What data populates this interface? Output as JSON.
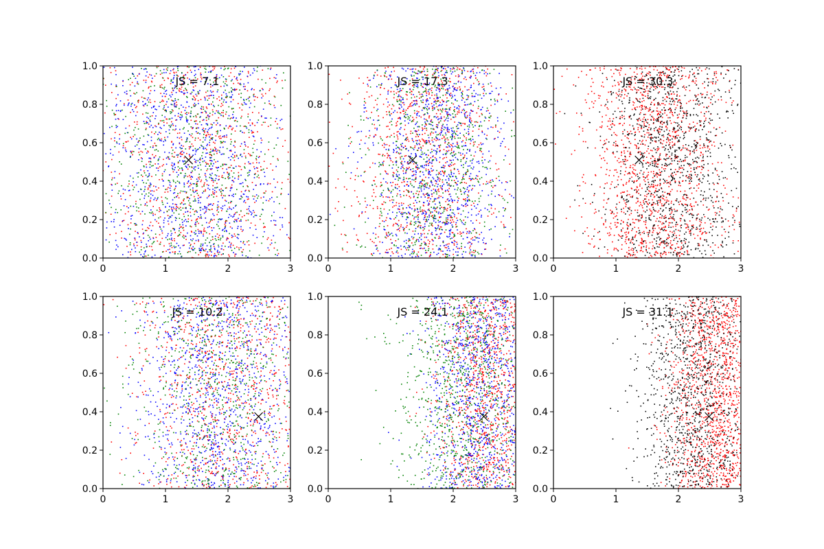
{
  "chart_data": [
    {
      "type": "scatter",
      "annotation": "JS = 7.1",
      "xlim": [
        0,
        3
      ],
      "ylim": [
        0,
        1
      ],
      "xticks": [
        "0",
        "1",
        "2",
        "3"
      ],
      "yticks": [
        "0.0",
        "0.2",
        "0.4",
        "0.6",
        "0.8",
        "1.0"
      ],
      "marker": {
        "x": 1.37,
        "y": 0.51
      },
      "series": [
        {
          "color": "#ff0000",
          "count": 900,
          "center": 1.5,
          "spread": 0.8
        },
        {
          "color": "#0000ff",
          "count": 1000,
          "center": 1.4,
          "spread": 0.75
        },
        {
          "color": "#008000",
          "count": 700,
          "center": 1.5,
          "spread": 0.75
        }
      ]
    },
    {
      "type": "scatter",
      "annotation": "JS = 17.3",
      "xlim": [
        0,
        3
      ],
      "ylim": [
        0,
        1
      ],
      "xticks": [
        "0",
        "1",
        "2",
        "3"
      ],
      "yticks": [
        "0.0",
        "0.2",
        "0.4",
        "0.6",
        "0.8",
        "1.0"
      ],
      "marker": {
        "x": 1.35,
        "y": 0.51
      },
      "series": [
        {
          "color": "#ff0000",
          "count": 1000,
          "center": 1.6,
          "spread": 0.6
        },
        {
          "color": "#0000ff",
          "count": 1000,
          "center": 1.75,
          "spread": 0.55
        },
        {
          "color": "#008000",
          "count": 700,
          "center": 1.7,
          "spread": 0.55
        }
      ]
    },
    {
      "type": "scatter",
      "annotation": "JS = 30.3",
      "xlim": [
        0,
        3
      ],
      "ylim": [
        0,
        1
      ],
      "xticks": [
        "0",
        "1",
        "2",
        "3"
      ],
      "yticks": [
        "0.0",
        "0.2",
        "0.4",
        "0.6",
        "0.8",
        "1.0"
      ],
      "marker": {
        "x": 1.37,
        "y": 0.51
      },
      "series": [
        {
          "color": "#ff0000",
          "count": 1400,
          "center": 1.6,
          "spread": 0.55
        },
        {
          "color": "#000000",
          "count": 1100,
          "center": 1.9,
          "spread": 0.55
        }
      ]
    },
    {
      "type": "scatter",
      "annotation": "JS = 10.2",
      "xlim": [
        0,
        3
      ],
      "ylim": [
        0,
        1
      ],
      "xticks": [
        "0",
        "1",
        "2",
        "3"
      ],
      "yticks": [
        "0.0",
        "0.2",
        "0.4",
        "0.6",
        "0.8",
        "1.0"
      ],
      "marker": {
        "x": 2.49,
        "y": 0.375
      },
      "series": [
        {
          "color": "#ff0000",
          "count": 900,
          "center": 1.9,
          "spread": 0.7
        },
        {
          "color": "#0000ff",
          "count": 1000,
          "center": 1.85,
          "spread": 0.7
        },
        {
          "color": "#008000",
          "count": 700,
          "center": 1.85,
          "spread": 0.7
        }
      ]
    },
    {
      "type": "scatter",
      "annotation": "JS = 24.1",
      "xlim": [
        0,
        3
      ],
      "ylim": [
        0,
        1
      ],
      "xticks": [
        "0",
        "1",
        "2",
        "3"
      ],
      "yticks": [
        "0.0",
        "0.2",
        "0.4",
        "0.6",
        "0.8",
        "1.0"
      ],
      "marker": {
        "x": 2.49,
        "y": 0.375
      },
      "series": [
        {
          "color": "#ff0000",
          "count": 1100,
          "center": 2.6,
          "spread": 0.45
        },
        {
          "color": "#0000ff",
          "count": 1000,
          "center": 2.45,
          "spread": 0.45
        },
        {
          "color": "#008000",
          "count": 900,
          "center": 2.15,
          "spread": 0.55
        }
      ]
    },
    {
      "type": "scatter",
      "annotation": "JS = 31.1",
      "xlim": [
        0,
        3
      ],
      "ylim": [
        0,
        1
      ],
      "xticks": [
        "0",
        "1",
        "2",
        "3"
      ],
      "yticks": [
        "0.0",
        "0.2",
        "0.4",
        "0.6",
        "0.8",
        "1.0"
      ],
      "marker": {
        "x": 2.49,
        "y": 0.375
      },
      "series": [
        {
          "color": "#ff0000",
          "count": 1500,
          "center": 2.65,
          "spread": 0.4
        },
        {
          "color": "#000000",
          "count": 1100,
          "center": 2.25,
          "spread": 0.45
        }
      ]
    }
  ]
}
